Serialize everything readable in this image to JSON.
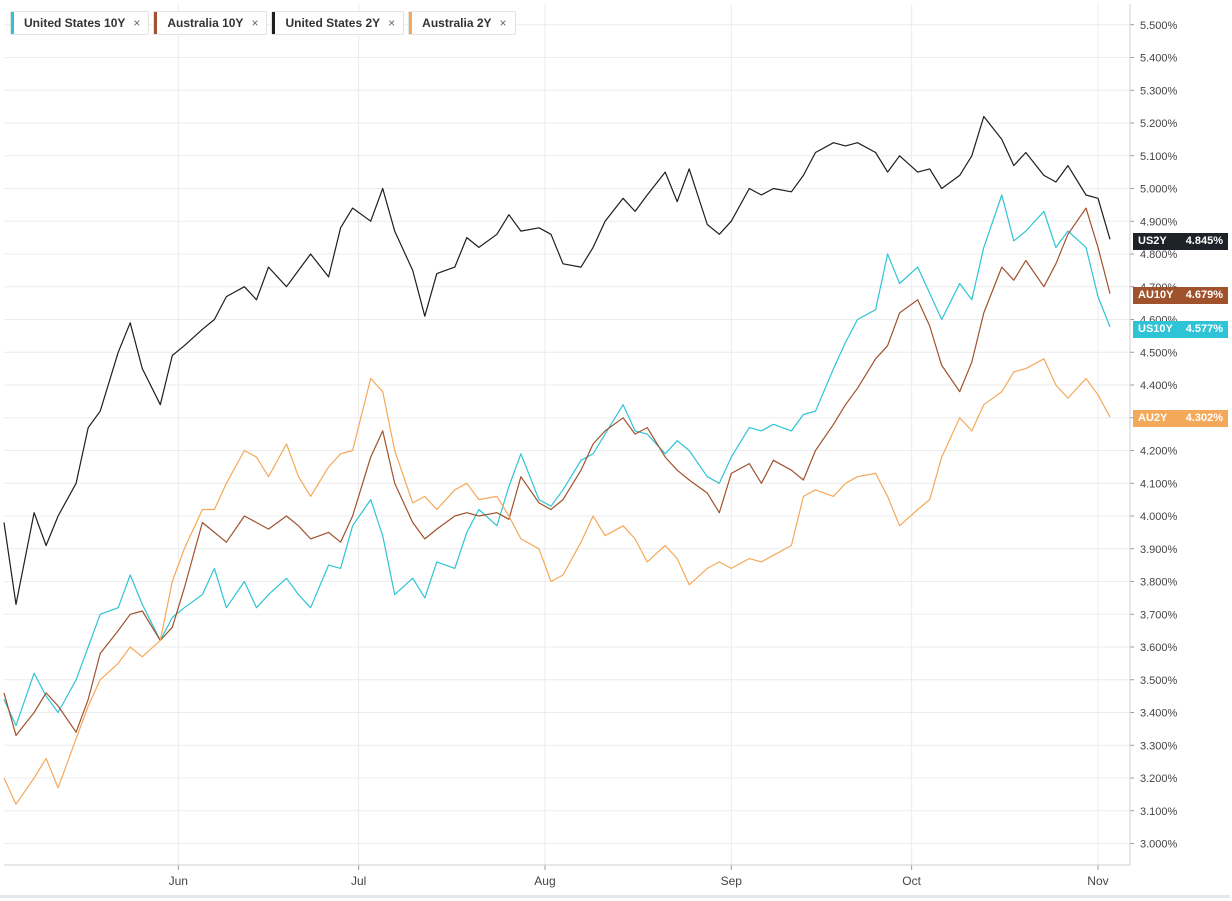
{
  "legend": [
    {
      "label": "United States 10Y",
      "color": "#2ec4d6"
    },
    {
      "label": "Australia 10Y",
      "color": "#a0522d"
    },
    {
      "label": "United States 2Y",
      "color": "#1e1e1e"
    },
    {
      "label": "Australia 2Y",
      "color": "#f4a85a"
    }
  ],
  "legend_close": "×",
  "end_tags": [
    {
      "label": "US2Y",
      "value": "4.845%",
      "color": "#1e2329"
    },
    {
      "label": "AU10Y",
      "value": "4.679%",
      "color": "#a0522d"
    },
    {
      "label": "US10Y",
      "value": "4.577%",
      "color": "#2ec4d6"
    },
    {
      "label": "AU2Y",
      "value": "4.302%",
      "color": "#f4a85a"
    }
  ],
  "chart_data": {
    "type": "line",
    "x_labels": [
      "Jun",
      "Jul",
      "Aug",
      "Sep",
      "Oct",
      "Nov"
    ],
    "ylim": [
      2.95,
      5.55
    ],
    "y_ticks": [
      3.0,
      3.1,
      3.2,
      3.3,
      3.4,
      3.5,
      3.6,
      3.7,
      3.8,
      3.9,
      4.0,
      4.1,
      4.2,
      4.3,
      4.4,
      4.5,
      4.6,
      4.7,
      4.8,
      4.9,
      5.0,
      5.1,
      5.2,
      5.3,
      5.4,
      5.5
    ],
    "y_tick_labels": [
      "3.000%",
      "3.100%",
      "3.200%",
      "3.300%",
      "3.400%",
      "3.500%",
      "3.600%",
      "3.700%",
      "3.800%",
      "3.900%",
      "4.000%",
      "4.100%",
      "4.200%",
      "4.300%",
      "4.400%",
      "4.500%",
      "4.600%",
      "4.700%",
      "4.800%",
      "4.900%",
      "5.000%",
      "5.100%",
      "5.200%",
      "5.300%",
      "5.400%",
      "5.500%"
    ],
    "grid": true,
    "x_range": [
      "2023-05-03",
      "2023-11-03"
    ],
    "x_ticks": [
      "2023-06-01",
      "2023-07-01",
      "2023-08-01",
      "2023-09-01",
      "2023-10-01",
      "2023-11-01"
    ],
    "series": [
      {
        "name": "United States 2Y",
        "color": "#1e1e1e",
        "x": [
          "2023-05-03",
          "2023-05-05",
          "2023-05-08",
          "2023-05-10",
          "2023-05-12",
          "2023-05-15",
          "2023-05-17",
          "2023-05-19",
          "2023-05-22",
          "2023-05-24",
          "2023-05-26",
          "2023-05-29",
          "2023-05-31",
          "2023-06-02",
          "2023-06-05",
          "2023-06-07",
          "2023-06-09",
          "2023-06-12",
          "2023-06-14",
          "2023-06-16",
          "2023-06-19",
          "2023-06-21",
          "2023-06-23",
          "2023-06-26",
          "2023-06-28",
          "2023-06-30",
          "2023-07-03",
          "2023-07-05",
          "2023-07-07",
          "2023-07-10",
          "2023-07-12",
          "2023-07-14",
          "2023-07-17",
          "2023-07-19",
          "2023-07-21",
          "2023-07-24",
          "2023-07-26",
          "2023-07-28",
          "2023-07-31",
          "2023-08-02",
          "2023-08-04",
          "2023-08-07",
          "2023-08-09",
          "2023-08-11",
          "2023-08-14",
          "2023-08-16",
          "2023-08-18",
          "2023-08-21",
          "2023-08-23",
          "2023-08-25",
          "2023-08-28",
          "2023-08-30",
          "2023-09-01",
          "2023-09-04",
          "2023-09-06",
          "2023-09-08",
          "2023-09-11",
          "2023-09-13",
          "2023-09-15",
          "2023-09-18",
          "2023-09-20",
          "2023-09-22",
          "2023-09-25",
          "2023-09-27",
          "2023-09-29",
          "2023-10-02",
          "2023-10-04",
          "2023-10-06",
          "2023-10-09",
          "2023-10-11",
          "2023-10-13",
          "2023-10-16",
          "2023-10-18",
          "2023-10-20",
          "2023-10-23",
          "2023-10-25",
          "2023-10-27",
          "2023-10-30",
          "2023-11-01",
          "2023-11-03"
        ],
        "values": [
          3.98,
          3.73,
          4.01,
          3.91,
          4.0,
          4.1,
          4.27,
          4.32,
          4.5,
          4.59,
          4.45,
          4.34,
          4.49,
          4.52,
          4.57,
          4.6,
          4.67,
          4.7,
          4.66,
          4.76,
          4.7,
          4.75,
          4.8,
          4.73,
          4.88,
          4.94,
          4.9,
          5.0,
          4.87,
          4.75,
          4.61,
          4.74,
          4.76,
          4.85,
          4.82,
          4.86,
          4.92,
          4.87,
          4.88,
          4.86,
          4.77,
          4.76,
          4.82,
          4.9,
          4.97,
          4.93,
          4.98,
          5.05,
          4.96,
          5.06,
          4.89,
          4.86,
          4.9,
          5.0,
          4.98,
          5.0,
          4.99,
          5.04,
          5.11,
          5.14,
          5.13,
          5.14,
          5.11,
          5.05,
          5.1,
          5.05,
          5.06,
          5.0,
          5.04,
          5.1,
          5.22,
          5.15,
          5.07,
          5.11,
          5.04,
          5.02,
          5.07,
          4.98,
          4.97,
          4.845
        ]
      },
      {
        "name": "United States 10Y",
        "color": "#2ec4d6",
        "x": [
          "2023-05-03",
          "2023-05-05",
          "2023-05-08",
          "2023-05-10",
          "2023-05-12",
          "2023-05-15",
          "2023-05-17",
          "2023-05-19",
          "2023-05-22",
          "2023-05-24",
          "2023-05-26",
          "2023-05-29",
          "2023-05-31",
          "2023-06-02",
          "2023-06-05",
          "2023-06-07",
          "2023-06-09",
          "2023-06-12",
          "2023-06-14",
          "2023-06-16",
          "2023-06-19",
          "2023-06-21",
          "2023-06-23",
          "2023-06-26",
          "2023-06-28",
          "2023-06-30",
          "2023-07-03",
          "2023-07-05",
          "2023-07-07",
          "2023-07-10",
          "2023-07-12",
          "2023-07-14",
          "2023-07-17",
          "2023-07-19",
          "2023-07-21",
          "2023-07-24",
          "2023-07-26",
          "2023-07-28",
          "2023-07-31",
          "2023-08-02",
          "2023-08-04",
          "2023-08-07",
          "2023-08-09",
          "2023-08-11",
          "2023-08-14",
          "2023-08-16",
          "2023-08-18",
          "2023-08-21",
          "2023-08-23",
          "2023-08-25",
          "2023-08-28",
          "2023-08-30",
          "2023-09-01",
          "2023-09-04",
          "2023-09-06",
          "2023-09-08",
          "2023-09-11",
          "2023-09-13",
          "2023-09-15",
          "2023-09-18",
          "2023-09-20",
          "2023-09-22",
          "2023-09-25",
          "2023-09-27",
          "2023-09-29",
          "2023-10-02",
          "2023-10-04",
          "2023-10-06",
          "2023-10-09",
          "2023-10-11",
          "2023-10-13",
          "2023-10-16",
          "2023-10-18",
          "2023-10-20",
          "2023-10-23",
          "2023-10-25",
          "2023-10-27",
          "2023-10-30",
          "2023-11-01",
          "2023-11-03"
        ],
        "values": [
          3.44,
          3.36,
          3.52,
          3.45,
          3.4,
          3.5,
          3.6,
          3.7,
          3.72,
          3.82,
          3.73,
          3.62,
          3.69,
          3.72,
          3.76,
          3.84,
          3.72,
          3.8,
          3.72,
          3.76,
          3.81,
          3.76,
          3.72,
          3.85,
          3.84,
          3.97,
          4.05,
          3.94,
          3.76,
          3.81,
          3.75,
          3.86,
          3.84,
          3.95,
          4.02,
          3.97,
          4.09,
          4.19,
          4.05,
          4.03,
          4.08,
          4.17,
          4.19,
          4.25,
          4.34,
          4.26,
          4.25,
          4.19,
          4.23,
          4.2,
          4.12,
          4.1,
          4.18,
          4.27,
          4.26,
          4.28,
          4.26,
          4.31,
          4.32,
          4.45,
          4.53,
          4.6,
          4.63,
          4.8,
          4.71,
          4.76,
          4.68,
          4.6,
          4.71,
          4.66,
          4.82,
          4.98,
          4.84,
          4.87,
          4.93,
          4.82,
          4.87,
          4.82,
          4.67,
          4.577
        ]
      },
      {
        "name": "Australia 10Y",
        "color": "#a0522d",
        "x": [
          "2023-05-03",
          "2023-05-05",
          "2023-05-08",
          "2023-05-10",
          "2023-05-12",
          "2023-05-15",
          "2023-05-17",
          "2023-05-19",
          "2023-05-22",
          "2023-05-24",
          "2023-05-26",
          "2023-05-29",
          "2023-05-31",
          "2023-06-02",
          "2023-06-05",
          "2023-06-07",
          "2023-06-09",
          "2023-06-12",
          "2023-06-14",
          "2023-06-16",
          "2023-06-19",
          "2023-06-21",
          "2023-06-23",
          "2023-06-26",
          "2023-06-28",
          "2023-06-30",
          "2023-07-03",
          "2023-07-05",
          "2023-07-07",
          "2023-07-10",
          "2023-07-12",
          "2023-07-14",
          "2023-07-17",
          "2023-07-19",
          "2023-07-21",
          "2023-07-24",
          "2023-07-26",
          "2023-07-28",
          "2023-07-31",
          "2023-08-02",
          "2023-08-04",
          "2023-08-07",
          "2023-08-09",
          "2023-08-11",
          "2023-08-14",
          "2023-08-16",
          "2023-08-18",
          "2023-08-21",
          "2023-08-23",
          "2023-08-25",
          "2023-08-28",
          "2023-08-30",
          "2023-09-01",
          "2023-09-04",
          "2023-09-06",
          "2023-09-08",
          "2023-09-11",
          "2023-09-13",
          "2023-09-15",
          "2023-09-18",
          "2023-09-20",
          "2023-09-22",
          "2023-09-25",
          "2023-09-27",
          "2023-09-29",
          "2023-10-02",
          "2023-10-04",
          "2023-10-06",
          "2023-10-09",
          "2023-10-11",
          "2023-10-13",
          "2023-10-16",
          "2023-10-18",
          "2023-10-20",
          "2023-10-23",
          "2023-10-25",
          "2023-10-27",
          "2023-10-30",
          "2023-11-01",
          "2023-11-03"
        ],
        "values": [
          3.46,
          3.33,
          3.4,
          3.46,
          3.42,
          3.34,
          3.44,
          3.58,
          3.65,
          3.7,
          3.71,
          3.62,
          3.66,
          3.78,
          3.98,
          3.95,
          3.92,
          4.0,
          3.98,
          3.96,
          4.0,
          3.97,
          3.93,
          3.95,
          3.92,
          4.0,
          4.18,
          4.26,
          4.1,
          3.98,
          3.93,
          3.96,
          4.0,
          4.01,
          4.0,
          4.01,
          3.99,
          4.12,
          4.04,
          4.02,
          4.05,
          4.14,
          4.22,
          4.26,
          4.3,
          4.25,
          4.27,
          4.18,
          4.14,
          4.11,
          4.07,
          4.01,
          4.13,
          4.16,
          4.1,
          4.17,
          4.14,
          4.11,
          4.2,
          4.28,
          4.34,
          4.39,
          4.48,
          4.52,
          4.62,
          4.66,
          4.58,
          4.46,
          4.38,
          4.47,
          4.62,
          4.76,
          4.72,
          4.78,
          4.7,
          4.77,
          4.86,
          4.94,
          4.82,
          4.679
        ]
      },
      {
        "name": "Australia 2Y",
        "color": "#f4a85a",
        "x": [
          "2023-05-03",
          "2023-05-05",
          "2023-05-08",
          "2023-05-10",
          "2023-05-12",
          "2023-05-15",
          "2023-05-17",
          "2023-05-19",
          "2023-05-22",
          "2023-05-24",
          "2023-05-26",
          "2023-05-29",
          "2023-05-31",
          "2023-06-02",
          "2023-06-05",
          "2023-06-07",
          "2023-06-09",
          "2023-06-12",
          "2023-06-14",
          "2023-06-16",
          "2023-06-19",
          "2023-06-21",
          "2023-06-23",
          "2023-06-26",
          "2023-06-28",
          "2023-06-30",
          "2023-07-03",
          "2023-07-05",
          "2023-07-07",
          "2023-07-10",
          "2023-07-12",
          "2023-07-14",
          "2023-07-17",
          "2023-07-19",
          "2023-07-21",
          "2023-07-24",
          "2023-07-26",
          "2023-07-28",
          "2023-07-31",
          "2023-08-02",
          "2023-08-04",
          "2023-08-07",
          "2023-08-09",
          "2023-08-11",
          "2023-08-14",
          "2023-08-16",
          "2023-08-18",
          "2023-08-21",
          "2023-08-23",
          "2023-08-25",
          "2023-08-28",
          "2023-08-30",
          "2023-09-01",
          "2023-09-04",
          "2023-09-06",
          "2023-09-08",
          "2023-09-11",
          "2023-09-13",
          "2023-09-15",
          "2023-09-18",
          "2023-09-20",
          "2023-09-22",
          "2023-09-25",
          "2023-09-27",
          "2023-09-29",
          "2023-10-02",
          "2023-10-04",
          "2023-10-06",
          "2023-10-09",
          "2023-10-11",
          "2023-10-13",
          "2023-10-16",
          "2023-10-18",
          "2023-10-20",
          "2023-10-23",
          "2023-10-25",
          "2023-10-27",
          "2023-10-30",
          "2023-11-01",
          "2023-11-03"
        ],
        "values": [
          3.2,
          3.12,
          3.2,
          3.26,
          3.17,
          3.32,
          3.42,
          3.5,
          3.55,
          3.6,
          3.57,
          3.62,
          3.8,
          3.9,
          4.02,
          4.02,
          4.1,
          4.2,
          4.18,
          4.12,
          4.22,
          4.12,
          4.06,
          4.15,
          4.19,
          4.2,
          4.42,
          4.38,
          4.2,
          4.04,
          4.06,
          4.02,
          4.08,
          4.1,
          4.05,
          4.06,
          4.0,
          3.93,
          3.9,
          3.8,
          3.82,
          3.92,
          4.0,
          3.94,
          3.97,
          3.93,
          3.86,
          3.91,
          3.87,
          3.79,
          3.84,
          3.86,
          3.84,
          3.87,
          3.86,
          3.88,
          3.91,
          4.06,
          4.08,
          4.06,
          4.1,
          4.12,
          4.13,
          4.06,
          3.97,
          4.02,
          4.05,
          4.18,
          4.3,
          4.26,
          4.34,
          4.38,
          4.44,
          4.45,
          4.48,
          4.4,
          4.36,
          4.42,
          4.37,
          4.302
        ]
      }
    ]
  }
}
